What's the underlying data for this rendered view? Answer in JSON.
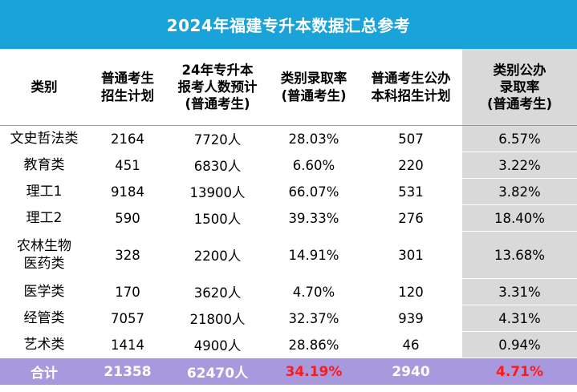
{
  "title": "2024年福建专升本数据汇总参考",
  "headers": [
    "类别",
    "普通考生\n招生计划",
    "24年专升本\n报考人数预计\n(普通考生)",
    "类别录取率\n(普通考生)",
    "普通考生公办\n本科招生计划",
    "类别公办\n录取率\n(普通考生)"
  ],
  "rows": [
    {
      "cat": "文史哲法类",
      "plan": "2164",
      "applicants": "7720人",
      "rate": "28.03%",
      "public_plan": "507",
      "public_rate": "6.57%"
    },
    {
      "cat": "教育类",
      "plan": "451",
      "applicants": "6830人",
      "rate": "6.60%",
      "public_plan": "220",
      "public_rate": "3.22%"
    },
    {
      "cat": "理工1",
      "plan": "9184",
      "applicants": "13900人",
      "rate": "66.07%",
      "public_plan": "531",
      "public_rate": "3.82%"
    },
    {
      "cat": "理工2",
      "plan": "590",
      "applicants": "1500人",
      "rate": "39.33%",
      "public_plan": "276",
      "public_rate": "18.40%"
    },
    {
      "cat": "农林生物\n医药类",
      "plan": "328",
      "applicants": "2200人",
      "rate": "14.91%",
      "public_plan": "301",
      "public_rate": "13.68%"
    },
    {
      "cat": "医学类",
      "plan": "170",
      "applicants": "3620人",
      "rate": "4.70%",
      "public_plan": "120",
      "public_rate": "3.31%"
    },
    {
      "cat": "经管类",
      "plan": "7057",
      "applicants": "21800人",
      "rate": "32.37%",
      "public_plan": "939",
      "public_rate": "4.31%"
    },
    {
      "cat": "艺术类",
      "plan": "1414",
      "applicants": "4900人",
      "rate": "28.86%",
      "public_plan": "46",
      "public_rate": "0.94%"
    }
  ],
  "total": {
    "cat": "合计",
    "plan": "21358",
    "applicants": "62470人",
    "rate": "34.19%",
    "public_plan": "2940",
    "public_rate": "4.71%"
  },
  "colors": {
    "title_bg": "#1aa3d9",
    "highlight_col": "#d9d9d9",
    "total_bg": "#a899de",
    "total_red": "#ff1a1a"
  }
}
